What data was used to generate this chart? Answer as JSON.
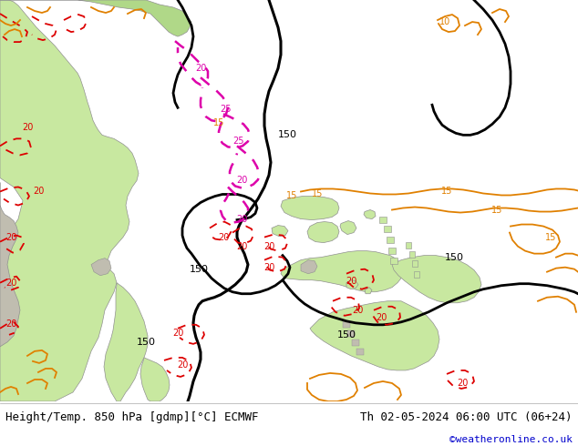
{
  "title_left": "Height/Temp. 850 hPa [gdmp][°C] ECMWF",
  "title_right": "Th 02-05-2024 06:00 UTC (06+24)",
  "credit": "©weatheronline.co.uk",
  "footer_bg": "#ffffff",
  "footer_text_color": "#000000",
  "credit_color": "#0000cc",
  "fig_width": 6.34,
  "fig_height": 4.9,
  "dpi": 100,
  "font_size_footer": 9,
  "font_size_credit": 8,
  "ocean_color": "#e8e8e8",
  "land_green": "#c8e8a0",
  "land_green2": "#b0d888",
  "land_gray": "#c0bdb0",
  "coast_color": "#909090",
  "black_contour_color": "#000000",
  "red_contour_color": "#dd0000",
  "orange_contour_color": "#e08000",
  "magenta_contour_color": "#dd00aa"
}
